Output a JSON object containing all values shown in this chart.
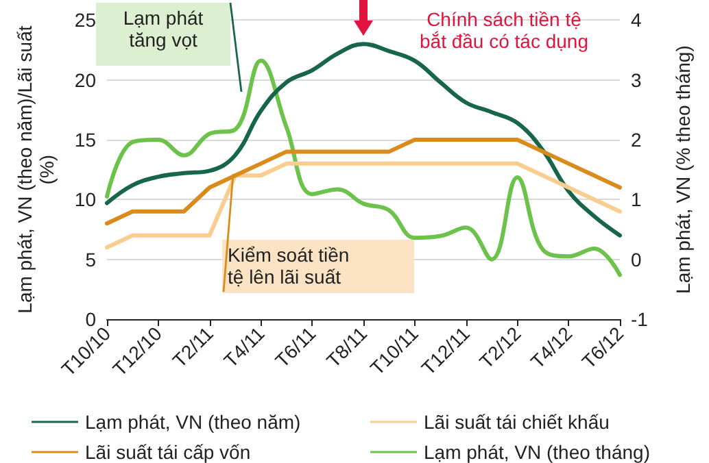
{
  "chart_data": {
    "type": "line",
    "categories": [
      "T10/10",
      null,
      "T12/10",
      null,
      "T2/11",
      null,
      "T4/11",
      null,
      "T6/11",
      null,
      "T8/11",
      null,
      "T10/11",
      null,
      "T12/11",
      null,
      "T2/12",
      null,
      "T4/12",
      null,
      "T6/12"
    ],
    "series": [
      {
        "name": "Lạm phát, VN (theo năm)",
        "color": "#17664a",
        "values": [
          9.7,
          11.2,
          11.9,
          12.2,
          12.4,
          13.7,
          17.4,
          19.8,
          20.8,
          22.2,
          23.0,
          22.4,
          21.6,
          19.8,
          18.1,
          17.3,
          16.4,
          14.1,
          10.7,
          8.6,
          7.0
        ]
      },
      {
        "name": "Lãi suất tái chiết khấu",
        "color": "#f9cc8f",
        "values": [
          6,
          7,
          7,
          7,
          7,
          12,
          12,
          13,
          13,
          13,
          13,
          13,
          13,
          13,
          13,
          13,
          13,
          12,
          11,
          10,
          9
        ]
      },
      {
        "name": "Lãi suất tái cấp vốn",
        "color": "#d98b1c",
        "values": [
          8,
          9,
          9,
          9,
          11,
          12,
          13,
          14,
          14,
          14,
          14,
          14,
          15,
          15,
          15,
          15,
          15,
          14,
          13,
          12,
          11
        ]
      },
      {
        "name": "Lạm phát, VN (theo tháng)",
        "color": "#6cc24a",
        "axis": "y2",
        "values": [
          1.05,
          1.96,
          2.0,
          1.74,
          2.1,
          2.17,
          3.32,
          2.21,
          1.09,
          1.17,
          0.93,
          0.82,
          0.36,
          0.39,
          0.53,
          0.0,
          1.37,
          0.16,
          0.05,
          0.18,
          -0.26
        ]
      }
    ],
    "ylabel": "Lạm phát, VN (theo năm)/Lãi suất (%)",
    "y2label": "Lạm phát, VN (% theo tháng)",
    "ylim": [
      0,
      25
    ],
    "yticks": [
      0,
      5,
      10,
      15,
      20,
      25
    ],
    "y2lim": [
      -1,
      4
    ],
    "y2ticks": [
      -1,
      0,
      1,
      2,
      3,
      4
    ],
    "annotations": [
      "Lạm phát tăng vọt",
      "Kiểm soát tiền tệ lên lãi suất",
      {
        "text": "Chính sách tiền tệ bắt đầu có tác dụng",
        "x": "T8/11",
        "y": 23
      }
    ],
    "grid": "y",
    "legend": "bottom",
    "marker": "none",
    "line_style": "solid"
  }
}
